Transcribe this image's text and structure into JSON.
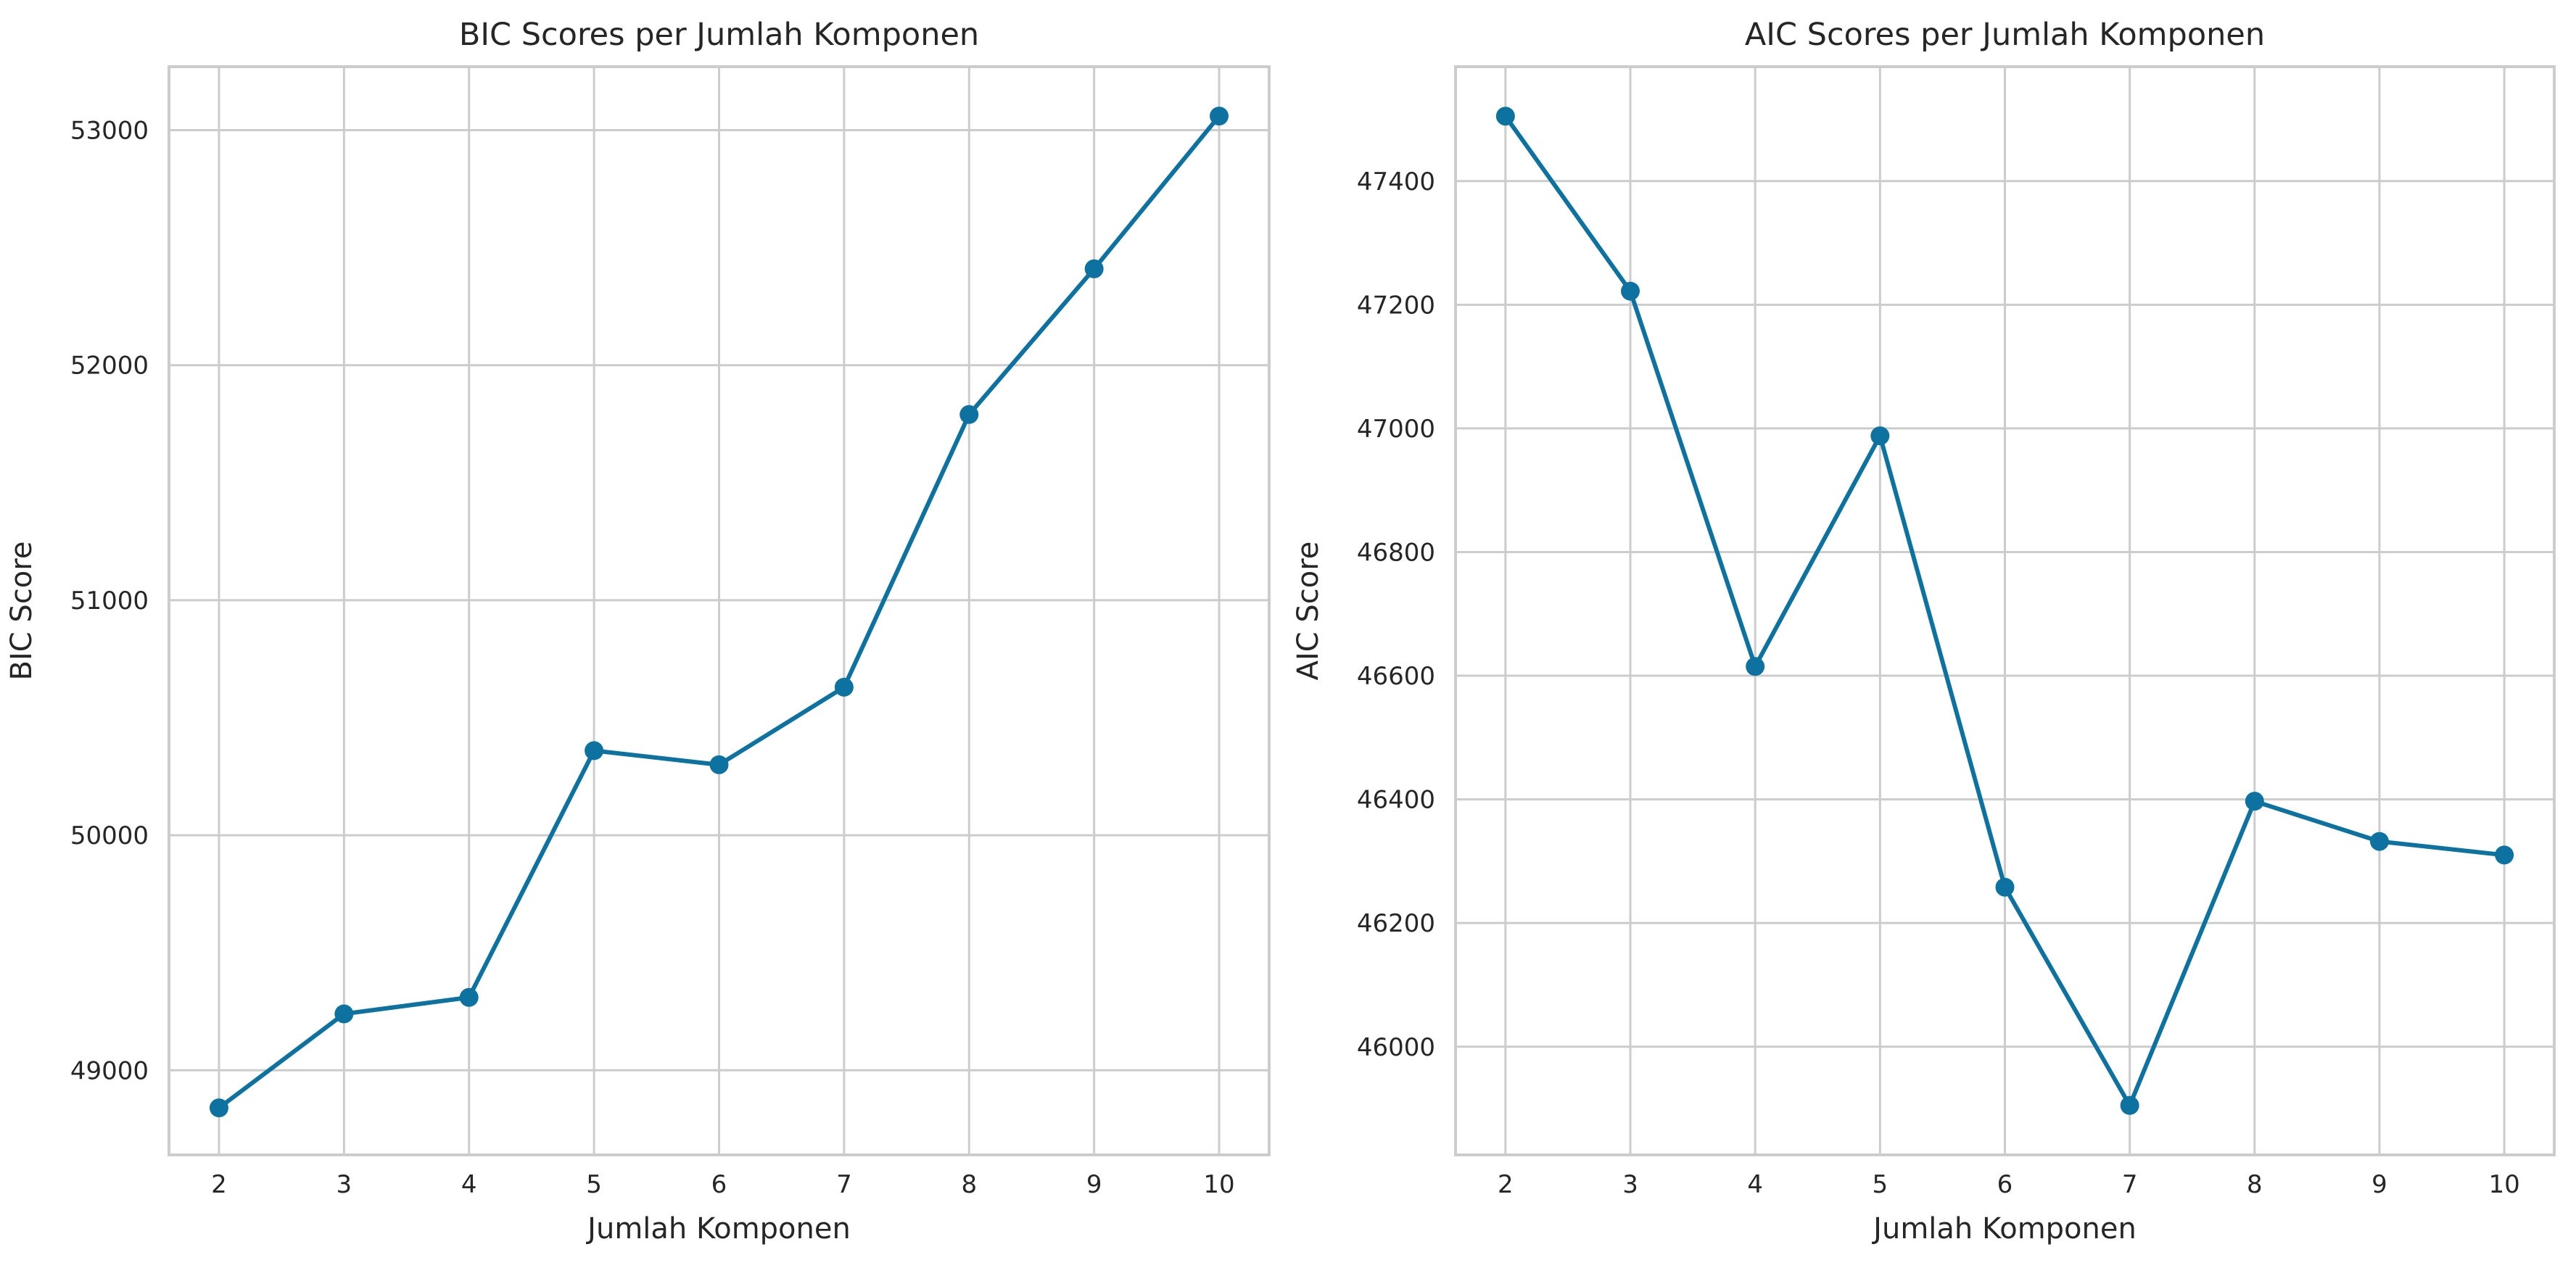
{
  "chart_data": [
    {
      "type": "line",
      "title": "BIC Scores per Jumlah Komponen",
      "xlabel": "Jumlah Komponen",
      "ylabel": "BIC Score",
      "x": [
        2,
        3,
        4,
        5,
        6,
        7,
        8,
        9,
        10
      ],
      "y": [
        48840,
        49240,
        49310,
        50360,
        50300,
        50630,
        51790,
        52410,
        53060
      ],
      "xlim": [
        1.6,
        10.4
      ],
      "ylim": [
        48640,
        53270
      ],
      "xticks": [
        2,
        3,
        4,
        5,
        6,
        7,
        8,
        9,
        10
      ],
      "yticks": [
        49000,
        50000,
        51000,
        52000,
        53000
      ],
      "grid": true,
      "color": "#0e72a0"
    },
    {
      "type": "line",
      "title": "AIC Scores per Jumlah Komponen",
      "xlabel": "Jumlah Komponen",
      "ylabel": "AIC Score",
      "x": [
        2,
        3,
        4,
        5,
        6,
        7,
        8,
        9,
        10
      ],
      "y": [
        47505,
        47222,
        46615,
        46988,
        46258,
        45905,
        46397,
        46332,
        46310
      ],
      "xlim": [
        1.6,
        10.4
      ],
      "ylim": [
        45825,
        47585
      ],
      "xticks": [
        2,
        3,
        4,
        5,
        6,
        7,
        8,
        9,
        10
      ],
      "yticks": [
        46000,
        46200,
        46400,
        46600,
        46800,
        47000,
        47200,
        47400
      ],
      "grid": true,
      "color": "#0e72a0"
    }
  ]
}
